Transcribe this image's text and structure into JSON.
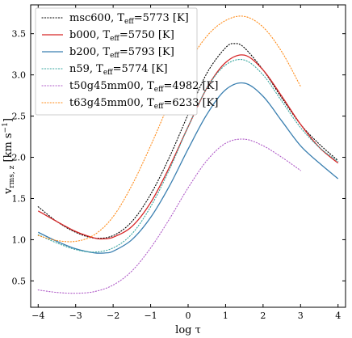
{
  "chart_data": {
    "type": "line",
    "xlabel": "log τ",
    "ylabel": "v rms, z [km s⁻¹]",
    "ylabel_parts": {
      "base": "v",
      "sub": "rms, z",
      "unit_pre": " [km s",
      "unit_sup": "−1",
      "unit_post": "]"
    },
    "xlim": [
      -4.2,
      4.2
    ],
    "ylim": [
      0.18,
      3.85
    ],
    "xticks": [
      -4,
      -3,
      -2,
      -1,
      0,
      1,
      2,
      3,
      4
    ],
    "yticks": [
      0.5,
      1.0,
      1.5,
      2.0,
      2.5,
      3.0,
      3.5
    ],
    "xtick_labels": [
      "−4",
      "−3",
      "−2",
      "−1",
      "0",
      "1",
      "2",
      "3",
      "4"
    ],
    "ytick_labels": [
      "0.5",
      "1.0",
      "1.5",
      "2.0",
      "2.5",
      "3.0",
      "3.5"
    ],
    "grid": false,
    "legend_position": "top-left",
    "series": [
      {
        "name": "msc600",
        "teff_label": "T",
        "teff_sub": "eff",
        "teff_value": "=5773 [K]",
        "color": "#000000",
        "style": "dotted",
        "x": [
          -4,
          -3.5,
          -3,
          -2.5,
          -2,
          -1.5,
          -1,
          -0.5,
          0,
          0.5,
          1,
          1.25,
          1.5,
          2,
          2.5,
          3,
          3.5,
          4
        ],
        "y": [
          1.4,
          1.22,
          1.09,
          1.02,
          1.05,
          1.22,
          1.55,
          2.0,
          2.52,
          3.02,
          3.33,
          3.38,
          3.33,
          3.06,
          2.72,
          2.4,
          2.16,
          1.96
        ]
      },
      {
        "name": "b000",
        "teff_label": "T",
        "teff_sub": "eff",
        "teff_value": "=5750 [K]",
        "color": "#d62728",
        "style": "solid",
        "x": [
          -4,
          -3.5,
          -3,
          -2.5,
          -2.3,
          -2,
          -1.5,
          -1,
          -0.5,
          0,
          0.5,
          1,
          1.5,
          2,
          2.5,
          3,
          3.5,
          4
        ],
        "y": [
          1.35,
          1.22,
          1.1,
          1.02,
          1.01,
          1.03,
          1.16,
          1.45,
          1.88,
          2.37,
          2.84,
          3.15,
          3.24,
          3.06,
          2.74,
          2.4,
          2.12,
          1.93
        ]
      },
      {
        "name": "b200",
        "teff_label": "T",
        "teff_sub": "eff",
        "teff_value": "=5793 [K]",
        "color": "#3a7fb0",
        "style": "solid",
        "x": [
          -4,
          -3.5,
          -3,
          -2.5,
          -2.2,
          -2,
          -1.5,
          -1,
          -0.5,
          0,
          0.5,
          1,
          1.5,
          2,
          2.5,
          3,
          3.5,
          4
        ],
        "y": [
          1.09,
          0.98,
          0.89,
          0.84,
          0.84,
          0.86,
          1.0,
          1.27,
          1.65,
          2.1,
          2.52,
          2.82,
          2.9,
          2.74,
          2.44,
          2.14,
          1.93,
          1.74
        ]
      },
      {
        "name": "n59",
        "teff_label": "T",
        "teff_sub": "eff",
        "teff_value": "=5774 [K]",
        "color": "#3aa7a0",
        "style": "dotted",
        "x": [
          -4,
          -3.5,
          -3,
          -2.5,
          -2,
          -1.5,
          -1,
          -0.5,
          0,
          0.5,
          1,
          1.5,
          2,
          2.5,
          3,
          3.5,
          4
        ],
        "y": [
          1.06,
          0.96,
          0.88,
          0.85,
          0.9,
          1.07,
          1.4,
          1.85,
          2.37,
          2.84,
          3.12,
          3.18,
          3.0,
          2.68,
          2.36,
          2.12,
          1.95
        ]
      },
      {
        "name": "t50g45mm00",
        "teff_label": "T",
        "teff_sub": "eff",
        "teff_value": "=4982 [K]",
        "color": "#b05cc8",
        "style": "dotted",
        "x": [
          -4,
          -3.5,
          -3,
          -2.5,
          -2,
          -1.5,
          -1,
          -0.5,
          0,
          0.5,
          1,
          1.5,
          2,
          2.5,
          3
        ],
        "y": [
          0.39,
          0.36,
          0.35,
          0.37,
          0.45,
          0.62,
          0.9,
          1.25,
          1.63,
          1.96,
          2.17,
          2.22,
          2.14,
          2.0,
          1.84
        ]
      },
      {
        "name": "t63g45mm00",
        "teff_label": "T",
        "teff_sub": "eff",
        "teff_value": "=6233 [K]",
        "color": "#ff8c1a",
        "style": "dotted",
        "x": [
          -4,
          -3.5,
          -3,
          -2.5,
          -2,
          -1.5,
          -1,
          -0.5,
          0,
          0.5,
          1,
          1.5,
          2,
          2.5,
          3
        ],
        "y": [
          1.05,
          0.99,
          0.98,
          1.06,
          1.28,
          1.66,
          2.14,
          2.66,
          3.13,
          3.47,
          3.66,
          3.71,
          3.58,
          3.28,
          2.86
        ]
      }
    ]
  }
}
